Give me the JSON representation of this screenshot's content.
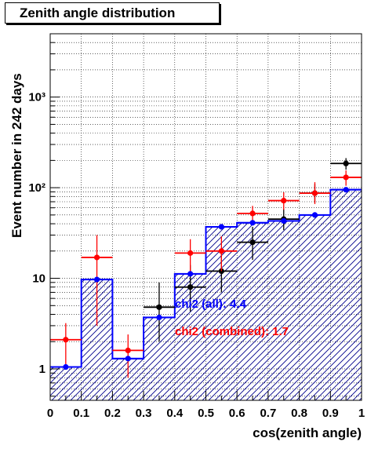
{
  "title": "Zenith angle distribution",
  "chart_data": {
    "type": "histogram",
    "title": "Zenith angle distribution",
    "xlabel": "cos(zenith angle)",
    "ylabel": "Event number in 242 days",
    "xlim": [
      0,
      1
    ],
    "ylim": [
      0.45,
      5000
    ],
    "yscale": "log",
    "grid": true,
    "bin_edges": [
      0,
      0.1,
      0.2,
      0.3,
      0.4,
      0.5,
      0.6,
      0.7,
      0.8,
      0.9,
      1.0
    ],
    "x_ticks": [
      "0",
      "0.1",
      "0.2",
      "0.3",
      "0.4",
      "0.5",
      "0.6",
      "0.7",
      "0.8",
      "0.9",
      "1"
    ],
    "y_ticks": [
      {
        "value": 1,
        "label": "1"
      },
      {
        "value": 10,
        "label": "10"
      },
      {
        "value": 100,
        "label": "10²"
      },
      {
        "value": 1000,
        "label": "10³"
      }
    ],
    "histogram": {
      "color": "#0000ff",
      "hatched": true,
      "values": [
        1.05,
        9.7,
        1.3,
        3.7,
        11.2,
        37,
        41,
        43,
        50,
        95
      ]
    },
    "series": [
      {
        "color": "#000000",
        "points": [
          {
            "x": 0.35,
            "y": 4.8,
            "ylo": 2.0,
            "yhi": 9.0
          },
          {
            "x": 0.45,
            "y": 8.0,
            "ylo": 4.3,
            "yhi": 14.0
          },
          {
            "x": 0.55,
            "y": 12.0,
            "ylo": 7.0,
            "yhi": 20.0
          },
          {
            "x": 0.65,
            "y": 25.0,
            "ylo": 16.0,
            "yhi": 37.0
          },
          {
            "x": 0.75,
            "y": 45.0,
            "ylo": 34.0,
            "yhi": 58.0
          },
          {
            "x": 0.85,
            "y": 87.0,
            "ylo": 69.0,
            "yhi": 110.0
          },
          {
            "x": 0.95,
            "y": 185.0,
            "ylo": 158.0,
            "yhi": 212.0
          }
        ]
      },
      {
        "color": "#ff0000",
        "points": [
          {
            "x": 0.05,
            "y": 2.1,
            "ylo": 1.05,
            "yhi": 3.2
          },
          {
            "x": 0.15,
            "y": 17.0,
            "ylo": 3.0,
            "yhi": 30.0
          },
          {
            "x": 0.25,
            "y": 1.6,
            "ylo": 0.8,
            "yhi": 2.4
          },
          {
            "x": 0.45,
            "y": 19.0,
            "ylo": 11.0,
            "yhi": 27.0
          },
          {
            "x": 0.55,
            "y": 20.0,
            "ylo": 12.0,
            "yhi": 29.0
          },
          {
            "x": 0.65,
            "y": 52.0,
            "ylo": 42.0,
            "yhi": 63.0
          },
          {
            "x": 0.75,
            "y": 72.0,
            "ylo": 57.0,
            "yhi": 89.0
          },
          {
            "x": 0.85,
            "y": 87.0,
            "ylo": 66.0,
            "yhi": 115.0
          },
          {
            "x": 0.95,
            "y": 130.0,
            "ylo": 105.0,
            "yhi": 155.0
          }
        ]
      },
      {
        "color": "#0000ff",
        "points": [
          {
            "x": 0.05,
            "y": 1.05
          },
          {
            "x": 0.15,
            "y": 9.7
          },
          {
            "x": 0.25,
            "y": 1.3
          },
          {
            "x": 0.35,
            "y": 3.7
          },
          {
            "x": 0.45,
            "y": 11.2
          },
          {
            "x": 0.55,
            "y": 37.0
          },
          {
            "x": 0.65,
            "y": 41.0
          },
          {
            "x": 0.75,
            "y": 43.0
          },
          {
            "x": 0.85,
            "y": 50.0
          },
          {
            "x": 0.95,
            "y": 95.0
          }
        ]
      }
    ],
    "annotations": [
      {
        "text": "chi2 (all): 4.4",
        "color": "#0000ff"
      },
      {
        "text": "chi2 (combined): 1.7",
        "color": "#ff0000"
      }
    ]
  }
}
